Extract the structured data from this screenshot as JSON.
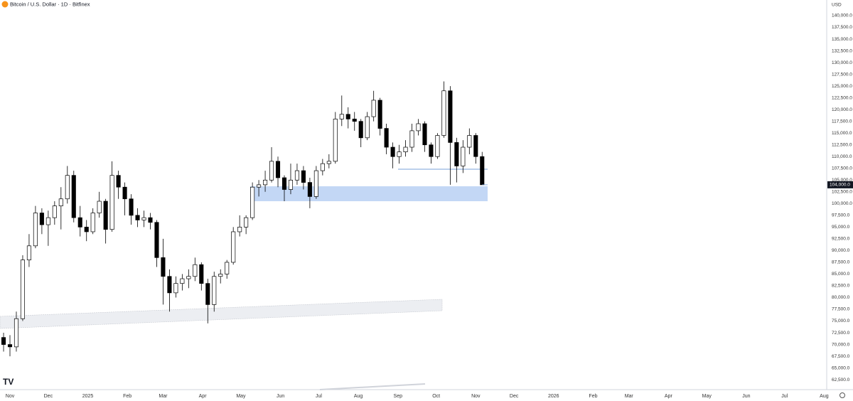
{
  "chart_data": {
    "type": "candlestick",
    "title": "Bitcoin / U.S. Dollar · 1D · Bitfinex",
    "currency": "USD",
    "up_color": "#ffffff",
    "down_color": "#000000",
    "x": [
      -5,
      0,
      5,
      10,
      15,
      20,
      25,
      30,
      35,
      40,
      45,
      50,
      55,
      60,
      65,
      70,
      75,
      80,
      85,
      90,
      95,
      100,
      105,
      110,
      115,
      120,
      125,
      130,
      135,
      140,
      145,
      150,
      155,
      160,
      165,
      170,
      175,
      180,
      185,
      190,
      195,
      200,
      205,
      210,
      215,
      220,
      225,
      230,
      235,
      240,
      245,
      250,
      255,
      260,
      265,
      270,
      275,
      280,
      285,
      290,
      295,
      300,
      305,
      310,
      315,
      320,
      325,
      330,
      335,
      340,
      345,
      350,
      355,
      360,
      365,
      370
    ],
    "open": [
      71500,
      70000,
      69500,
      75500,
      88000,
      91000,
      98000,
      95500,
      97000,
      99500,
      101000,
      106000,
      97000,
      95000,
      94000,
      98000,
      100500,
      94500,
      106000,
      103500,
      101000,
      97500,
      96500,
      97000,
      96000,
      88500,
      84500,
      81000,
      83000,
      84000,
      84500,
      87000,
      83000,
      78500,
      84500,
      85000,
      87500,
      94000,
      95000,
      97000,
      103500,
      104000,
      105000,
      109000,
      105500,
      103000,
      105000,
      107000,
      104500,
      101500,
      107000,
      108500,
      109000,
      118000,
      119000,
      118000,
      117500,
      114000,
      118500,
      122000,
      116000,
      112000,
      110000,
      111000,
      112000,
      115500,
      117000,
      112500,
      110000,
      114500,
      124000,
      113000,
      108000,
      112000,
      114500,
      110000
    ],
    "high": [
      72500,
      72000,
      77000,
      89000,
      93500,
      99500,
      99000,
      98500,
      100500,
      103500,
      108000,
      107000,
      99500,
      96500,
      99000,
      102500,
      101000,
      109000,
      107000,
      104500,
      102000,
      99000,
      98500,
      98000,
      96500,
      92500,
      86000,
      84500,
      85000,
      86000,
      88500,
      87500,
      84000,
      85500,
      86000,
      88000,
      95000,
      97500,
      97500,
      104500,
      105000,
      107000,
      112000,
      110000,
      106000,
      108500,
      108500,
      108000,
      105500,
      108000,
      109500,
      110500,
      119500,
      123000,
      120500,
      119500,
      118000,
      119500,
      124000,
      122500,
      117000,
      113000,
      112500,
      113500,
      117000,
      118000,
      117500,
      113000,
      115000,
      126000,
      125000,
      114000,
      113500,
      116000,
      115000,
      111000
    ],
    "low": [
      68500,
      67500,
      68500,
      75000,
      86500,
      90500,
      93500,
      91000,
      95500,
      94500,
      100000,
      96000,
      93000,
      92000,
      93500,
      97000,
      91500,
      94000,
      101000,
      97500,
      95500,
      95000,
      95000,
      94500,
      86500,
      78500,
      77000,
      80000,
      81500,
      82000,
      83500,
      81500,
      74500,
      77000,
      83000,
      84000,
      87000,
      93000,
      93500,
      96500,
      101500,
      102500,
      104500,
      103500,
      100500,
      102000,
      104000,
      103000,
      99000,
      101000,
      106000,
      107500,
      108500,
      116500,
      116000,
      115500,
      112000,
      113500,
      117500,
      114500,
      110500,
      107500,
      108500,
      110000,
      111000,
      114500,
      111000,
      108500,
      109500,
      114000,
      104000,
      104500,
      106500,
      110500,
      108500,
      104000
    ],
    "close": [
      70000,
      69500,
      75500,
      88000,
      91000,
      98000,
      95500,
      97000,
      99500,
      101000,
      106000,
      97000,
      95000,
      94000,
      98000,
      100500,
      94500,
      106000,
      103500,
      101000,
      97500,
      96500,
      97000,
      96000,
      88500,
      84500,
      81000,
      83000,
      84000,
      84500,
      87000,
      83000,
      78500,
      84500,
      85000,
      87500,
      94000,
      95000,
      97000,
      103500,
      104000,
      105000,
      109000,
      105500,
      103000,
      105000,
      107000,
      104500,
      101500,
      107000,
      108500,
      109000,
      118000,
      119000,
      118000,
      117500,
      114000,
      118500,
      122000,
      116000,
      112000,
      110000,
      111000,
      112000,
      115500,
      117000,
      112500,
      110000,
      114500,
      124000,
      113000,
      108000,
      112000,
      114500,
      110000,
      104000
    ],
    "xlim": [
      -7.8,
      640
    ],
    "xticks": [
      {
        "value": 0,
        "label": "Nov"
      },
      {
        "value": 30,
        "label": "Dec"
      },
      {
        "value": 61,
        "label": "2025"
      },
      {
        "value": 92,
        "label": "Feb"
      },
      {
        "value": 120,
        "label": "Mar"
      },
      {
        "value": 151,
        "label": "Apr"
      },
      {
        "value": 181,
        "label": "May"
      },
      {
        "value": 212,
        "label": "Jun"
      },
      {
        "value": 242,
        "label": "Jul"
      },
      {
        "value": 273,
        "label": "Aug"
      },
      {
        "value": 304,
        "label": "Sep"
      },
      {
        "value": 334,
        "label": "Oct"
      },
      {
        "value": 365,
        "label": "Nov"
      },
      {
        "value": 395,
        "label": "Dec"
      },
      {
        "value": 426,
        "label": "2026"
      },
      {
        "value": 457,
        "label": "Feb"
      },
      {
        "value": 485,
        "label": "Mar"
      },
      {
        "value": 516,
        "label": "Apr"
      },
      {
        "value": 546,
        "label": "May"
      },
      {
        "value": 577,
        "label": "Jun"
      },
      {
        "value": 607,
        "label": "Jul"
      },
      {
        "value": 638,
        "label": "Aug"
      }
    ],
    "ylim": [
      60400,
      143330
    ],
    "yticks": [
      {
        "value": 62500,
        "label": "62,500.0"
      },
      {
        "value": 65000,
        "label": "65,000.0"
      },
      {
        "value": 67500,
        "label": "67,500.0"
      },
      {
        "value": 70000,
        "label": "70,000.0"
      },
      {
        "value": 72500,
        "label": "72,500.0"
      },
      {
        "value": 75000,
        "label": "75,000.0"
      },
      {
        "value": 77500,
        "label": "77,500.0"
      },
      {
        "value": 80000,
        "label": "80,000.0"
      },
      {
        "value": 82500,
        "label": "82,500.0"
      },
      {
        "value": 85000,
        "label": "85,000.0"
      },
      {
        "value": 87500,
        "label": "87,500.0"
      },
      {
        "value": 90000,
        "label": "90,000.0"
      },
      {
        "value": 92500,
        "label": "92,500.0"
      },
      {
        "value": 95000,
        "label": "95,000.0"
      },
      {
        "value": 97500,
        "label": "97,500.0"
      },
      {
        "value": 100000,
        "label": "100,000.0"
      },
      {
        "value": 102500,
        "label": "102,500.0"
      },
      {
        "value": 105000,
        "label": "105,000.0"
      },
      {
        "value": 107500,
        "label": "107,500.0"
      },
      {
        "value": 110000,
        "label": "110,000.0"
      },
      {
        "value": 112500,
        "label": "112,500.0"
      },
      {
        "value": 115000,
        "label": "115,000.0"
      },
      {
        "value": 117500,
        "label": "117,500.0"
      },
      {
        "value": 120000,
        "label": "120,000.0"
      },
      {
        "value": 122500,
        "label": "122,500.0"
      },
      {
        "value": 125000,
        "label": "125,000.0"
      },
      {
        "value": 127500,
        "label": "127,500.0"
      },
      {
        "value": 130000,
        "label": "130,000.0"
      },
      {
        "value": 132500,
        "label": "132,500.0"
      },
      {
        "value": 135000,
        "label": "135,000.0"
      },
      {
        "value": 137500,
        "label": "137,500.0"
      },
      {
        "value": 140000,
        "label": "140,000.0"
      }
    ],
    "last_price": {
      "value": 104000,
      "label": "104,000.0"
    }
  }
}
